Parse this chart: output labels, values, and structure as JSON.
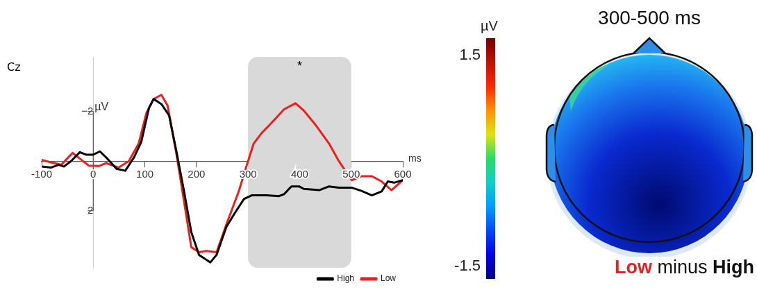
{
  "chart_data": [
    {
      "type": "line",
      "title": "Cz",
      "xlabel": "ms",
      "ylabel": "µV",
      "xlim": [
        -100,
        600
      ],
      "xticks": [
        -100,
        0,
        100,
        200,
        300,
        400,
        500,
        600
      ],
      "ylim": [
        4.3,
        -4.2
      ],
      "yticks": [
        -2,
        2
      ],
      "grid": false,
      "legend": "bottom right",
      "marker": "none",
      "line_style": "solid",
      "bands": [
        {
          "axis": "x",
          "from": 300,
          "to": 500,
          "color": "#d9d9d9"
        }
      ],
      "annotations": [
        "*"
      ],
      "series": [
        {
          "name": "High",
          "color": "#000000",
          "x": [
            -100,
            -82,
            -67,
            -57,
            -43,
            -26,
            -14,
            0,
            13,
            25,
            45,
            62,
            79,
            93,
            108,
            117,
            132,
            147,
            161,
            176,
            190,
            205,
            227,
            239,
            258,
            273,
            292,
            307,
            336,
            360,
            370,
            384,
            399,
            408,
            438,
            457,
            476,
            501,
            520,
            540,
            559,
            571,
            583,
            600
          ],
          "values": [
            0.22,
            0.26,
            0.15,
            0.22,
            0,
            -0.36,
            -0.26,
            -0.26,
            -0.39,
            -0.15,
            0.31,
            0.39,
            -0.15,
            -0.77,
            -2.14,
            -2.5,
            -2.3,
            -1.84,
            -0.41,
            1.22,
            2.86,
            3.78,
            4.08,
            3.78,
            2.65,
            2.14,
            1.53,
            1.38,
            1.38,
            1.41,
            1.33,
            1.02,
            1.02,
            1.12,
            1.17,
            1.02,
            1.07,
            1.07,
            1.2,
            1.38,
            1.22,
            0.82,
            0.87,
            0.77
          ]
        },
        {
          "name": "Low",
          "color": "#e8201e",
          "x": [
            -100,
            -82,
            -62,
            -40,
            -26,
            -9,
            11,
            25,
            49,
            69,
            88,
            103,
            117,
            132,
            144,
            161,
            176,
            190,
            205,
            219,
            239,
            258,
            282,
            297,
            311,
            326,
            345,
            370,
            392,
            408,
            432,
            457,
            476,
            501,
            520,
            540,
            559,
            578,
            600
          ],
          "values": [
            -0.05,
            0.05,
            0.15,
            -0.33,
            -0.1,
            0.18,
            0.2,
            0.08,
            0.26,
            0,
            -0.71,
            -1.94,
            -2.5,
            -2.67,
            -2.24,
            -0.31,
            1.63,
            3.47,
            3.67,
            3.62,
            3.67,
            2.55,
            1.22,
            0.2,
            -0.71,
            -1.12,
            -1.53,
            -2.09,
            -2.33,
            -2.04,
            -1.43,
            -0.71,
            0,
            0.77,
            0.61,
            0.61,
            0.82,
            1.17,
            0.77
          ]
        }
      ]
    },
    {
      "type": "other",
      "title": "300-500 ms",
      "clabel": "µV",
      "annotations": [
        "1.5",
        "-1.5",
        "Low",
        "minus",
        "High"
      ]
    }
  ]
}
